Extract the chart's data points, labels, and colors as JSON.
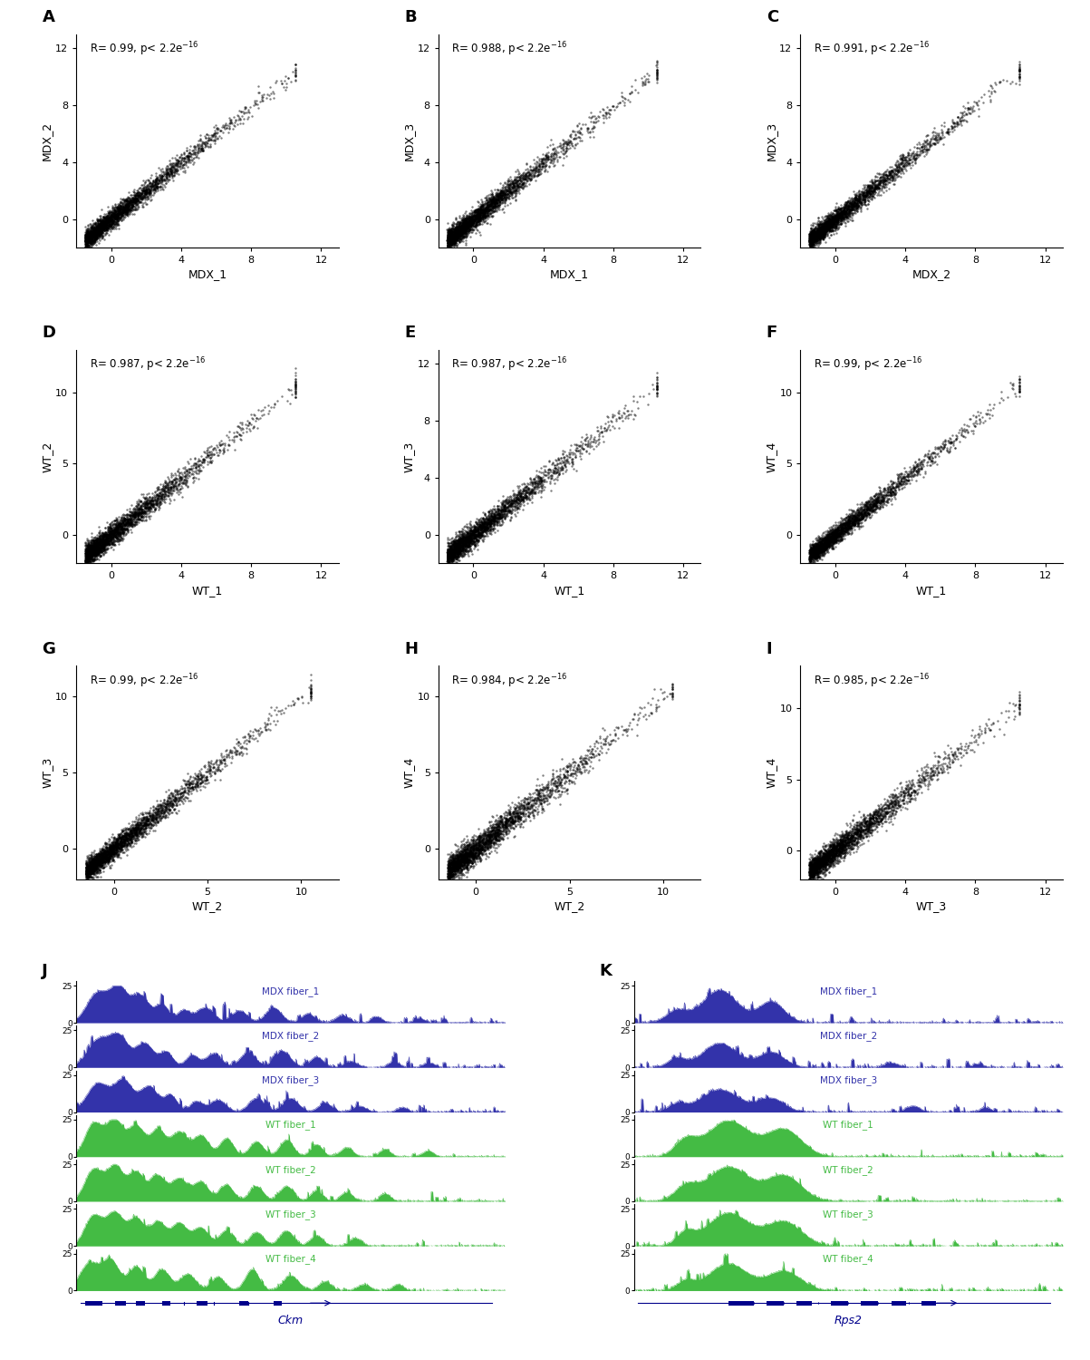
{
  "panels": [
    {
      "label": "A",
      "xlabel": "MDX_1",
      "ylabel": "MDX_2",
      "R": "0.99",
      "xlim": [
        -2,
        13
      ],
      "ylim": [
        -2,
        13
      ],
      "xticks": [
        0,
        4,
        8,
        12
      ],
      "yticks": [
        0,
        4,
        8,
        12
      ]
    },
    {
      "label": "B",
      "xlabel": "MDX_1",
      "ylabel": "MDX_3",
      "R": "0.988",
      "xlim": [
        -2,
        13
      ],
      "ylim": [
        -2,
        13
      ],
      "xticks": [
        0,
        4,
        8,
        12
      ],
      "yticks": [
        0,
        4,
        8,
        12
      ]
    },
    {
      "label": "C",
      "xlabel": "MDX_2",
      "ylabel": "MDX_3",
      "R": "0.991",
      "xlim": [
        -2,
        13
      ],
      "ylim": [
        -2,
        13
      ],
      "xticks": [
        0,
        4,
        8,
        12
      ],
      "yticks": [
        0,
        4,
        8,
        12
      ]
    },
    {
      "label": "D",
      "xlabel": "WT_1",
      "ylabel": "WT_2",
      "R": "0.987",
      "xlim": [
        -2,
        13
      ],
      "ylim": [
        -2,
        13
      ],
      "xticks": [
        0,
        4,
        8,
        12
      ],
      "yticks": [
        0,
        5,
        10
      ]
    },
    {
      "label": "E",
      "xlabel": "WT_1",
      "ylabel": "WT_3",
      "R": "0.987",
      "xlim": [
        -2,
        13
      ],
      "ylim": [
        -2,
        13
      ],
      "xticks": [
        0,
        4,
        8,
        12
      ],
      "yticks": [
        0,
        4,
        8,
        12
      ]
    },
    {
      "label": "F",
      "xlabel": "WT_1",
      "ylabel": "WT_4",
      "R": "0.99",
      "xlim": [
        -2,
        13
      ],
      "ylim": [
        -2,
        13
      ],
      "xticks": [
        0,
        4,
        8,
        12
      ],
      "yticks": [
        0,
        5,
        10
      ]
    },
    {
      "label": "G",
      "xlabel": "WT_2",
      "ylabel": "WT_3",
      "R": "0.99",
      "xlim": [
        -2,
        12
      ],
      "ylim": [
        -2,
        12
      ],
      "xticks": [
        0,
        5,
        10
      ],
      "yticks": [
        0,
        5,
        10
      ]
    },
    {
      "label": "H",
      "xlabel": "WT_2",
      "ylabel": "WT_4",
      "R": "0.984",
      "xlim": [
        -2,
        12
      ],
      "ylim": [
        -2,
        12
      ],
      "xticks": [
        0,
        5,
        10
      ],
      "yticks": [
        0,
        5,
        10
      ]
    },
    {
      "label": "I",
      "xlabel": "WT_3",
      "ylabel": "WT_4",
      "R": "0.985",
      "xlim": [
        -2,
        13
      ],
      "ylim": [
        -2,
        13
      ],
      "xticks": [
        0,
        4,
        8,
        12
      ],
      "yticks": [
        0,
        5,
        10
      ]
    }
  ],
  "mdx_color": "#3333aa",
  "wt_color": "#44bb44",
  "gene_color": "#00008B",
  "scatter_color": "#000000",
  "scatter_size": 3,
  "scatter_alpha": 0.5
}
